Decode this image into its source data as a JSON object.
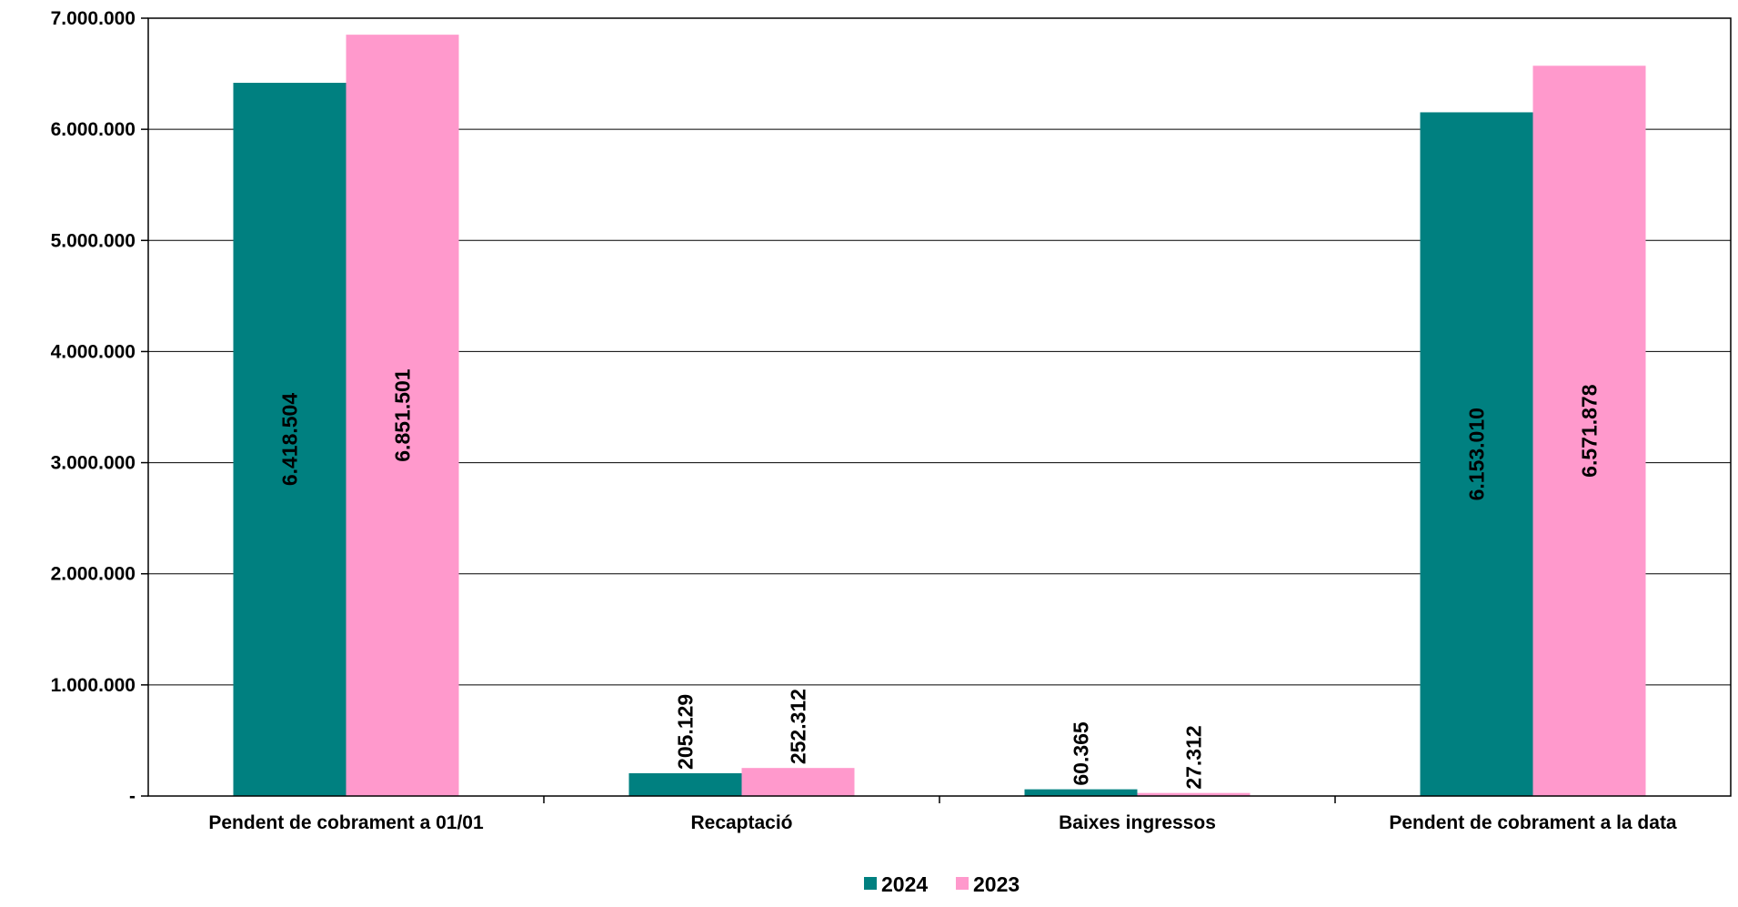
{
  "chart_data": {
    "type": "bar",
    "categories": [
      "Pendent de cobrament a 01/01",
      "Recaptació",
      "Baixes ingressos",
      "Pendent de cobrament a la data"
    ],
    "series": [
      {
        "name": "2024",
        "color": "#008080",
        "values": [
          6418504,
          205129,
          60365,
          6153010
        ]
      },
      {
        "name": "2023",
        "color": "#FF99CC",
        "values": [
          6851501,
          252312,
          27312,
          6571878
        ]
      }
    ],
    "data_labels": [
      [
        "6.418.504",
        "205.129",
        "60.365",
        "6.153.010"
      ],
      [
        "6.851.501",
        "252.312",
        "27.312",
        "6.571.878"
      ]
    ],
    "y_ticks": [
      {
        "value": 0,
        "label": "-"
      },
      {
        "value": 1000000,
        "label": "1.000.000"
      },
      {
        "value": 2000000,
        "label": "2.000.000"
      },
      {
        "value": 3000000,
        "label": "3.000.000"
      },
      {
        "value": 4000000,
        "label": "4.000.000"
      },
      {
        "value": 5000000,
        "label": "5.000.000"
      },
      {
        "value": 6000000,
        "label": "6.000.000"
      },
      {
        "value": 7000000,
        "label": "7.000.000"
      }
    ],
    "ylim": [
      0,
      7000000
    ],
    "title": "",
    "xlabel": "",
    "ylabel": "",
    "grid": true,
    "legend_position": "bottom-center"
  }
}
